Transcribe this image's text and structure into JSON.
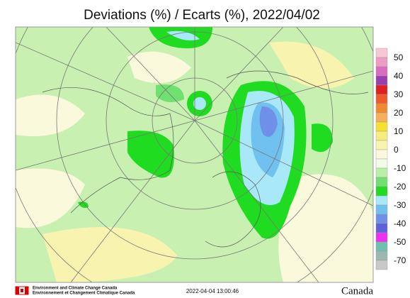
{
  "title": "Deviations (%) / Ecarts (%), 2022/04/02",
  "legend": {
    "labels": [
      "50",
      "40",
      "30",
      "20",
      "10",
      "0",
      "-10",
      "-20",
      "-30",
      "-40",
      "-50",
      "-70"
    ],
    "colors": [
      "#f6c8d6",
      "#ee9cc2",
      "#d86cc0",
      "#9a3fb0",
      "#e02020",
      "#f05a2a",
      "#f08a30",
      "#f6b05a",
      "#f6e030",
      "#f6ec7a",
      "#f8f4b0",
      "#fbf9dc",
      "#f0fbe8",
      "#b8f0a8",
      "#70e070",
      "#20dc20",
      "#a8e8f8",
      "#70c0f0",
      "#7090e8",
      "#6060d8",
      "#f030f0",
      "#70c0b0",
      "#9ab8b0",
      "#c8c8c8"
    ]
  },
  "footer": {
    "agency_en": "Environment and Climate Change Canada",
    "agency_fr": "Environnement et Changement Climatique Canada",
    "timestamp": "2022-04-04 13:00:46",
    "wordmark": "Canada"
  }
}
